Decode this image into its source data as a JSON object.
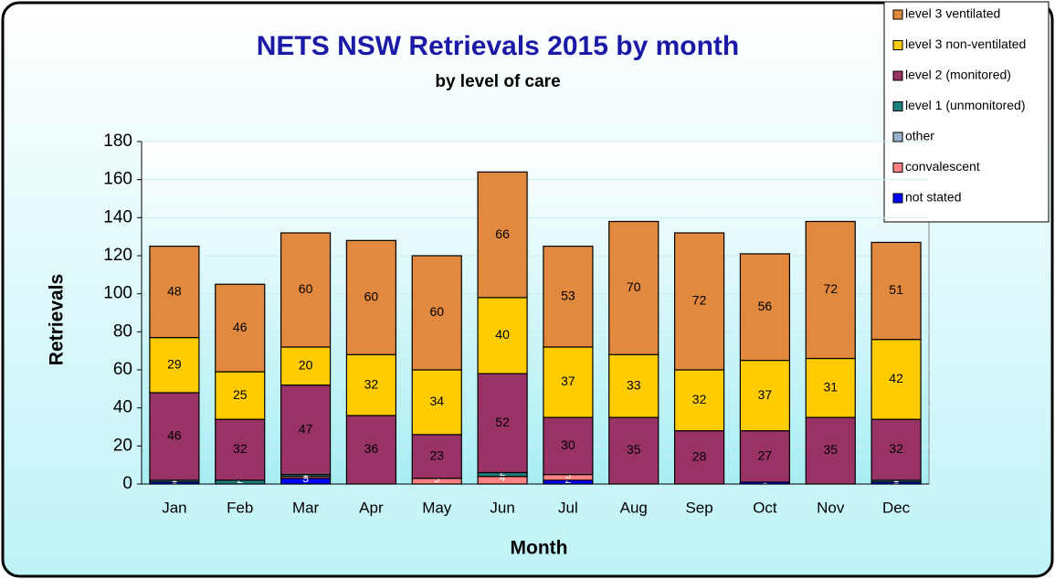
{
  "chart_data": {
    "type": "stacked_bar",
    "title": "NETS NSW Retrievals 2015 by month",
    "subtitle": "by level of care",
    "x_label": "Month",
    "y_label": "Retrievals",
    "categories": [
      "Jan",
      "Feb",
      "Mar",
      "Apr",
      "May",
      "Jun",
      "Jul",
      "Aug",
      "Sep",
      "Oct",
      "Nov",
      "Dec"
    ],
    "series": [
      {
        "name": "not stated",
        "color": "#0000ff",
        "values": [
          1,
          0,
          3,
          0,
          0,
          0,
          2,
          0,
          0,
          1,
          0,
          1
        ]
      },
      {
        "name": "convalescent",
        "color": "#ff8080",
        "values": [
          0,
          0,
          1,
          0,
          3,
          4,
          3,
          0,
          0,
          0,
          0,
          0
        ]
      },
      {
        "name": "other",
        "color": "#99b3cc",
        "values": [
          0,
          0,
          0,
          0,
          0,
          0,
          0,
          0,
          0,
          0,
          0,
          0
        ]
      },
      {
        "name": "level 1 (unmonitored)",
        "color": "#1f8080",
        "values": [
          1,
          2,
          1,
          0,
          0,
          2,
          0,
          0,
          0,
          0,
          0,
          1
        ]
      },
      {
        "name": "level 2 (monitored)",
        "color": "#993366",
        "values": [
          46,
          32,
          47,
          36,
          23,
          52,
          30,
          35,
          28,
          27,
          35,
          32
        ]
      },
      {
        "name": "level 3 non-ventilated",
        "color": "#ffcc00",
        "values": [
          29,
          25,
          20,
          32,
          34,
          40,
          37,
          33,
          32,
          37,
          31,
          42
        ]
      },
      {
        "name": "level 3 ventilated",
        "color": "#e0893f",
        "values": [
          48,
          46,
          60,
          60,
          60,
          66,
          53,
          70,
          72,
          56,
          72,
          51
        ]
      }
    ],
    "ylim": [
      0,
      180
    ],
    "yticks": [
      0,
      20,
      40,
      60,
      80,
      100,
      120,
      140,
      160,
      180
    ],
    "legend": "top-right"
  }
}
